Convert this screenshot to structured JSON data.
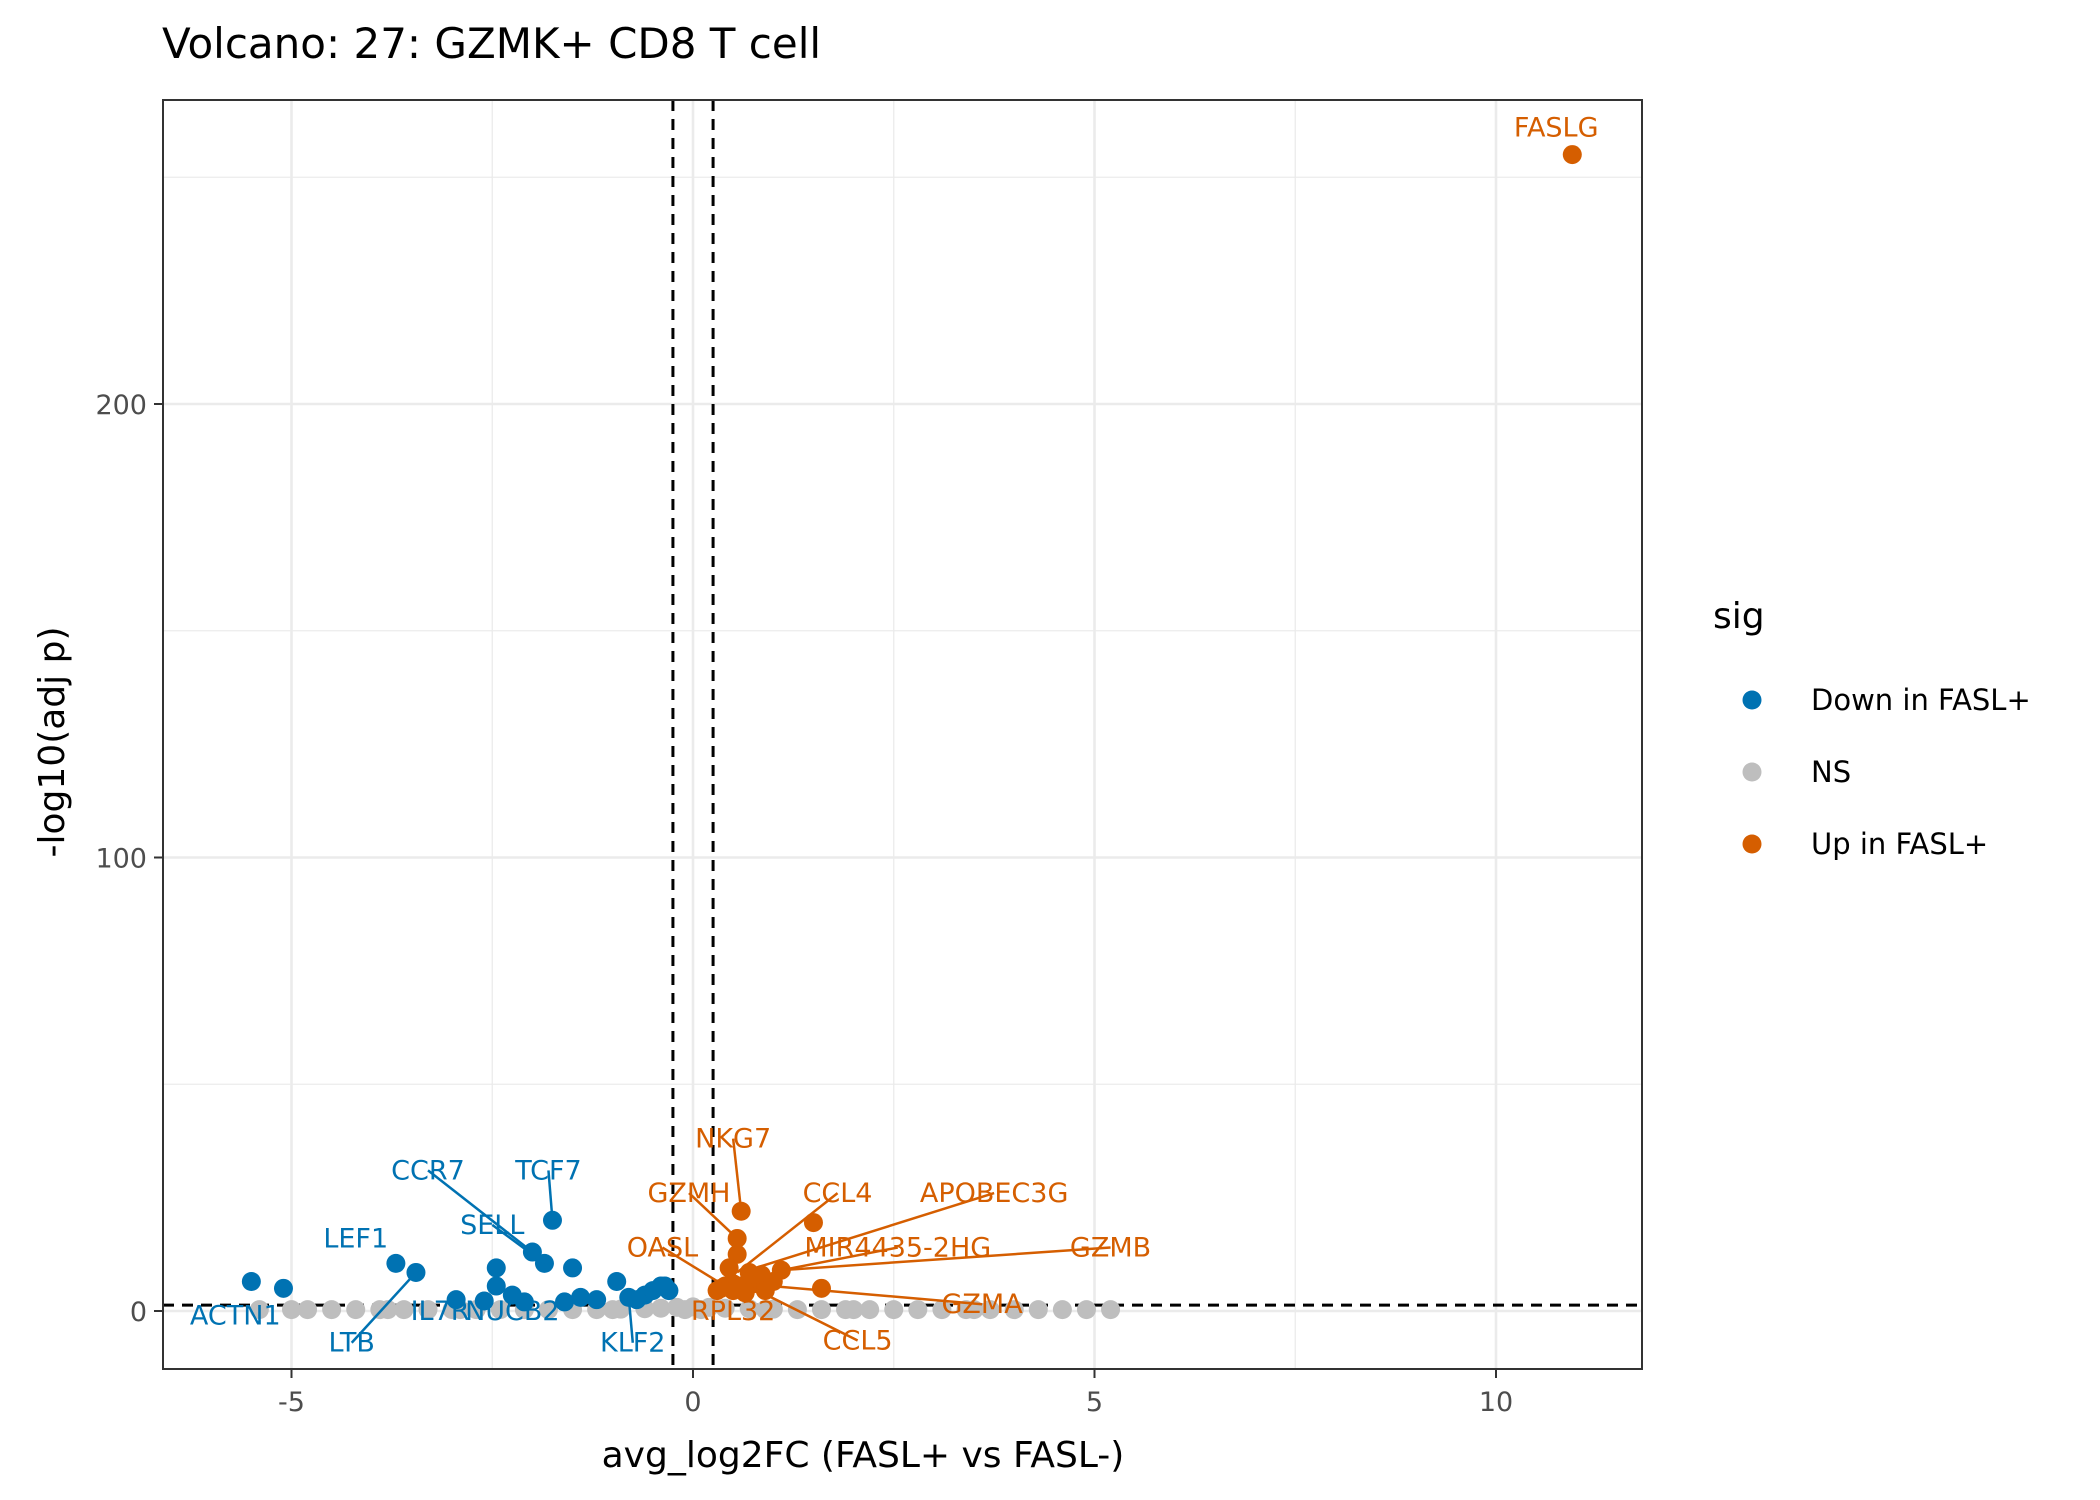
{
  "chart_data": {
    "type": "scatter",
    "title": "Volcano: 27: GZMK+ CD8 T cell",
    "xlabel": "avg_log2FC (FASL+ vs FASL-)",
    "ylabel": "-log10(adj p)",
    "xlim": [
      -6.7,
      11.8
    ],
    "ylim": [
      -12.5,
      268
    ],
    "x_ticks": [
      -5,
      0,
      5,
      10
    ],
    "x_tick_labels": [
      "-5",
      "0",
      "5",
      "10"
    ],
    "y_ticks": [
      0,
      100,
      200
    ],
    "y_tick_labels": [
      "0",
      "100",
      "200"
    ],
    "grid": true,
    "thresholds": {
      "log2fc": [
        -0.25,
        0.25
      ],
      "neg_log10_p": 1.3
    },
    "colors": {
      "down": "#0072B2",
      "ns": "#BEBEBE",
      "up": "#D55E00"
    },
    "legend": {
      "title": "sig",
      "position": "right",
      "entries": [
        {
          "label": "Down in FASL+",
          "key": "down"
        },
        {
          "label": "NS",
          "key": "ns"
        },
        {
          "label": "Up in FASL+",
          "key": "up"
        }
      ]
    },
    "series": [
      {
        "name": "Down in FASL+",
        "key": "down",
        "points": [
          [
            -5.5,
            6.5
          ],
          [
            -5.1,
            5
          ],
          [
            -3.7,
            10.5
          ],
          [
            -3.45,
            8.5
          ],
          [
            -2.95,
            2.5
          ],
          [
            -2.45,
            9.5
          ],
          [
            -2.45,
            5.5
          ],
          [
            -2.25,
            3.5
          ],
          [
            -2.0,
            13
          ],
          [
            -1.85,
            10.5
          ],
          [
            -1.75,
            20
          ],
          [
            -1.5,
            9.5
          ],
          [
            -1.4,
            3
          ],
          [
            -0.95,
            6.5
          ],
          [
            -0.8,
            3
          ],
          [
            -0.6,
            3.5
          ],
          [
            -0.5,
            4.5
          ],
          [
            -0.4,
            5.5
          ],
          [
            -0.35,
            5.5
          ],
          [
            -0.3,
            4.5
          ],
          [
            -0.7,
            2.5
          ],
          [
            -2.1,
            2
          ],
          [
            -1.6,
            2
          ],
          [
            -1.2,
            2.5
          ],
          [
            -2.6,
            2.2
          ]
        ]
      },
      {
        "name": "NS",
        "key": "ns",
        "points": [
          [
            -5.4,
            0.3
          ],
          [
            -5.0,
            0.3
          ],
          [
            -4.8,
            0.3
          ],
          [
            -4.5,
            0.3
          ],
          [
            -4.2,
            0.3
          ],
          [
            -3.9,
            0.3
          ],
          [
            -3.6,
            0.3
          ],
          [
            -3.3,
            0.3
          ],
          [
            -3.0,
            0.3
          ],
          [
            -2.7,
            0.3
          ],
          [
            -2.4,
            0.3
          ],
          [
            -2.1,
            0.3
          ],
          [
            -1.8,
            0.3
          ],
          [
            -1.5,
            0.3
          ],
          [
            -1.2,
            0.3
          ],
          [
            -0.9,
            0.4
          ],
          [
            -0.6,
            0.5
          ],
          [
            -0.4,
            0.6
          ],
          [
            -0.2,
            0.8
          ],
          [
            0.0,
            0.9
          ],
          [
            0.2,
            0.8
          ],
          [
            0.4,
            0.6
          ],
          [
            0.7,
            0.5
          ],
          [
            1.0,
            0.4
          ],
          [
            1.3,
            0.3
          ],
          [
            1.6,
            0.3
          ],
          [
            1.9,
            0.3
          ],
          [
            2.2,
            0.3
          ],
          [
            2.5,
            0.3
          ],
          [
            2.8,
            0.3
          ],
          [
            3.1,
            0.3
          ],
          [
            3.4,
            0.3
          ],
          [
            3.7,
            0.3
          ],
          [
            4.0,
            0.3
          ],
          [
            4.3,
            0.3
          ],
          [
            4.6,
            0.3
          ],
          [
            4.9,
            0.3
          ],
          [
            5.2,
            0.3
          ],
          [
            -3.8,
            0.3
          ],
          [
            -2.9,
            0.3
          ],
          [
            -1.0,
            0.3
          ],
          [
            -0.1,
            0.3
          ],
          [
            0.1,
            0.3
          ],
          [
            0.9,
            0.3
          ],
          [
            2.0,
            0.3
          ],
          [
            3.5,
            0.3
          ]
        ]
      },
      {
        "name": "Up in FASL+",
        "key": "up",
        "points": [
          [
            10.95,
            255
          ],
          [
            0.6,
            22
          ],
          [
            0.55,
            16
          ],
          [
            0.55,
            12.5
          ],
          [
            0.45,
            9.5
          ],
          [
            0.7,
            8.5
          ],
          [
            0.85,
            8
          ],
          [
            1.1,
            9
          ],
          [
            1.5,
            19.5
          ],
          [
            1.6,
            5
          ],
          [
            0.4,
            5.5
          ],
          [
            0.5,
            6
          ],
          [
            0.6,
            5.5
          ],
          [
            0.75,
            6
          ],
          [
            0.9,
            4.5
          ],
          [
            0.5,
            4.5
          ],
          [
            0.65,
            4
          ],
          [
            0.35,
            5
          ],
          [
            1.0,
            6.5
          ],
          [
            0.3,
            4.5
          ]
        ]
      }
    ],
    "labels": [
      {
        "text": "FASLG",
        "key": "up",
        "point": [
          10.95,
          255
        ],
        "label_at": [
          10.75,
          261
        ],
        "leader": false
      },
      {
        "text": "NKG7",
        "key": "up",
        "point": [
          0.6,
          22
        ],
        "label_at": [
          0.5,
          38
        ],
        "leader": true
      },
      {
        "text": "GZMH",
        "key": "up",
        "point": [
          0.55,
          16
        ],
        "label_at": [
          -0.05,
          26
        ],
        "leader": true
      },
      {
        "text": "CCL4",
        "key": "up",
        "point": [
          0.55,
          8.5
        ],
        "label_at": [
          1.8,
          26
        ],
        "leader": true
      },
      {
        "text": "APOBEC3G",
        "key": "up",
        "point": [
          0.6,
          8.5
        ],
        "label_at": [
          3.75,
          26
        ],
        "leader": true
      },
      {
        "text": "OASL",
        "key": "up",
        "point": [
          0.4,
          5.5
        ],
        "label_at": [
          -0.38,
          14
        ],
        "leader": true
      },
      {
        "text": "MIR4435-2HG",
        "key": "up",
        "point": [
          1.1,
          9
        ],
        "label_at": [
          2.55,
          14
        ],
        "leader": true
      },
      {
        "text": "GZMB",
        "key": "up",
        "point": [
          1.1,
          9
        ],
        "label_at": [
          5.2,
          14
        ],
        "leader": true
      },
      {
        "text": "GZMA",
        "key": "up",
        "point": [
          0.65,
          6
        ],
        "label_at": [
          3.6,
          1.5
        ],
        "leader": true
      },
      {
        "text": "CCL5",
        "key": "up",
        "point": [
          0.75,
          5
        ],
        "label_at": [
          2.05,
          -6.5
        ],
        "leader": true
      },
      {
        "text": "RPL32",
        "key": "up",
        "point": [
          0.5,
          3
        ],
        "label_at": [
          0.5,
          0
        ],
        "leader": false
      },
      {
        "text": "CCR7",
        "key": "down",
        "point": [
          -2.0,
          13
        ],
        "label_at": [
          -3.3,
          31
        ],
        "leader": true
      },
      {
        "text": "TCF7",
        "key": "down",
        "point": [
          -1.75,
          20
        ],
        "label_at": [
          -1.8,
          31
        ],
        "leader": true
      },
      {
        "text": "LEF1",
        "key": "down",
        "point": [
          -3.7,
          10.5
        ],
        "label_at": [
          -4.2,
          16
        ],
        "leader": false
      },
      {
        "text": "SELL",
        "key": "down",
        "point": [
          -1.85,
          10.5
        ],
        "label_at": [
          -2.5,
          19
        ],
        "leader": true
      },
      {
        "text": "LTB",
        "key": "down",
        "point": [
          -3.45,
          8.5
        ],
        "label_at": [
          -4.25,
          -7
        ],
        "leader": true
      },
      {
        "text": "IL7R",
        "key": "down",
        "point": [
          -2.95,
          2.5
        ],
        "label_at": [
          -3.15,
          0
        ],
        "leader": false
      },
      {
        "text": "NUCB2",
        "key": "down",
        "point": [
          -2.25,
          3.5
        ],
        "label_at": [
          -2.25,
          0
        ],
        "leader": false
      },
      {
        "text": "KLF2",
        "key": "down",
        "point": [
          -0.8,
          3
        ],
        "label_at": [
          -0.75,
          -7
        ],
        "leader": true
      },
      {
        "text": "ACTN1",
        "key": "down",
        "point": [
          -5.5,
          6.5
        ],
        "label_at": [
          -5.7,
          -1
        ],
        "leader": false
      }
    ]
  }
}
